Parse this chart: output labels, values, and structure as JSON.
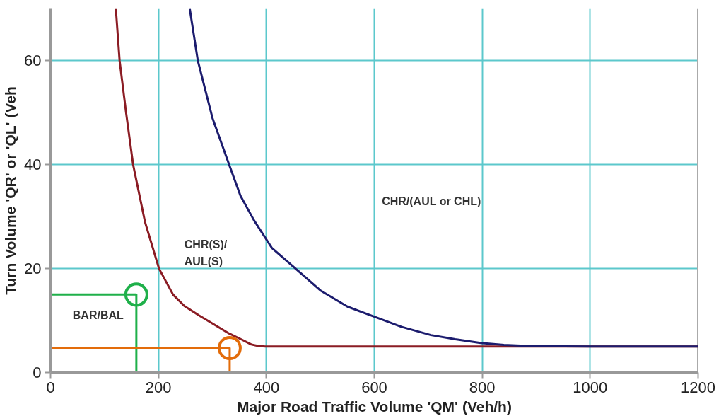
{
  "chart_data": {
    "type": "line",
    "xlabel": "Major Road Traffic Volume 'QM' (Veh/h)",
    "ylabel": "Turn Volume 'QR' or 'QL' (Veh",
    "xlim": [
      0,
      1200
    ],
    "ylim": [
      0,
      70
    ],
    "xticks": [
      0,
      200,
      400,
      600,
      800,
      1000,
      1200
    ],
    "yticks": [
      0,
      20,
      40,
      60
    ],
    "grid": true,
    "marker": "none",
    "line_style": "solid",
    "series": [
      {
        "color": "#8b1c24",
        "x": [
          121,
          128,
          140,
          153,
          175,
          201,
          227,
          248,
          275,
          299,
          331,
          355,
          372,
          385,
          398,
          500,
          700,
          900,
          1200
        ],
        "values": [
          70,
          60,
          50,
          40,
          29,
          20,
          15,
          12.8,
          11,
          9.5,
          7.5,
          6.3,
          5.4,
          5.1,
          5,
          5,
          5,
          5,
          5
        ]
      },
      {
        "color": "#1c1c6e",
        "x": [
          258,
          273,
          300,
          331,
          352,
          377,
          410,
          454,
          500,
          550,
          601,
          650,
          705,
          750,
          797,
          840,
          886,
          1000,
          1200
        ],
        "values": [
          70,
          60,
          49,
          40,
          34,
          29.3,
          24,
          20,
          15.8,
          12.7,
          10.7,
          8.8,
          7.2,
          6.4,
          5.7,
          5.3,
          5.1,
          5,
          5
        ]
      },
      {
        "color": "#1fb04a",
        "x": [
          0,
          159,
          159
        ],
        "values": [
          15,
          15,
          0
        ]
      },
      {
        "color": "#1fb04a",
        "type": "scatter",
        "marker": "circle",
        "x": [
          159
        ],
        "values": [
          15
        ]
      },
      {
        "color": "#e36c0a",
        "x": [
          0,
          332,
          332
        ],
        "values": [
          4.7,
          4.7,
          0
        ]
      },
      {
        "color": "#e36c0a",
        "type": "scatter",
        "marker": "circle",
        "x": [
          332
        ],
        "values": [
          4.7
        ]
      }
    ],
    "annotations": [
      "CHR/(AUL or CHL)",
      "CHR(S)/\nAUL(S)",
      "BAR/BAL"
    ]
  }
}
